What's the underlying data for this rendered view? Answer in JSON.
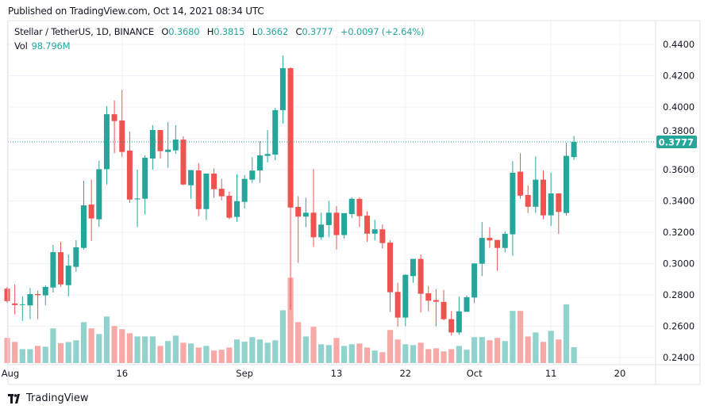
{
  "published": "Published on TradingView.com, Oct 14, 2021 08:34 UTC",
  "legend": {
    "symbol": "Stellar / TetherUS, 1D, BINANCE",
    "open_label": "O",
    "open": "0.3680",
    "high_label": "H",
    "high": "0.3815",
    "low_label": "L",
    "low": "0.3662",
    "close_label": "C",
    "close": "0.3777",
    "change": "+0.0097 (+2.64%)",
    "vol_label": "Vol",
    "vol": "98.796M"
  },
  "footer": {
    "brand": "TradingView"
  },
  "colors": {
    "up": "#26a69a",
    "down": "#ef5350",
    "up_volume": "#92d2cc",
    "down_volume": "#f7a9a7",
    "grid": "#f0f3fa",
    "text": "#131722"
  },
  "chart_data": {
    "type": "candlestick",
    "title": "",
    "ylim": [
      0.24,
      0.44
    ],
    "y_ticks": [
      "0.2400",
      "0.2600",
      "0.2800",
      "0.3000",
      "0.3200",
      "0.3400",
      "0.3600",
      "0.3800",
      "0.4000",
      "0.4200",
      "0.4400"
    ],
    "x_ticks": [
      {
        "label": "Aug",
        "date": "2021-08-01"
      },
      {
        "label": "16",
        "date": "2021-08-16"
      },
      {
        "label": "Sep",
        "date": "2021-09-01"
      },
      {
        "label": "13",
        "date": "2021-09-13"
      },
      {
        "label": "22",
        "date": "2021-09-22"
      },
      {
        "label": "Oct",
        "date": "2021-10-01"
      },
      {
        "label": "11",
        "date": "2021-10-11"
      },
      {
        "label": "20",
        "date": "2021-10-20"
      }
    ],
    "last_price": "0.3777",
    "grid": true,
    "columns": [
      "date",
      "open",
      "high",
      "low",
      "close",
      "volume_M"
    ],
    "rows": [
      [
        "2021-08-01",
        0.284,
        0.285,
        0.275,
        0.276,
        157
      ],
      [
        "2021-08-02",
        0.2745,
        0.2867,
        0.2675,
        0.2735,
        132
      ],
      [
        "2021-08-03",
        0.2735,
        0.2791,
        0.2634,
        0.274,
        87
      ],
      [
        "2021-08-04",
        0.2733,
        0.2844,
        0.2645,
        0.2805,
        87
      ],
      [
        "2021-08-05",
        0.2805,
        0.2827,
        0.2645,
        0.2798,
        107
      ],
      [
        "2021-08-06",
        0.2797,
        0.2861,
        0.2734,
        0.2851,
        102
      ],
      [
        "2021-08-07",
        0.2847,
        0.3119,
        0.2815,
        0.3073,
        216
      ],
      [
        "2021-08-08",
        0.3073,
        0.3139,
        0.2851,
        0.2867,
        124
      ],
      [
        "2021-08-09",
        0.2862,
        0.3058,
        0.279,
        0.2987,
        131
      ],
      [
        "2021-08-10",
        0.2979,
        0.3149,
        0.2948,
        0.3104,
        142
      ],
      [
        "2021-08-11",
        0.31,
        0.3529,
        0.3089,
        0.3372,
        255
      ],
      [
        "2021-08-12",
        0.3377,
        0.3536,
        0.3144,
        0.3288,
        216
      ],
      [
        "2021-08-13",
        0.3283,
        0.3657,
        0.3235,
        0.3603,
        181
      ],
      [
        "2021-08-14",
        0.3603,
        0.4005,
        0.3505,
        0.3954,
        290
      ],
      [
        "2021-08-15",
        0.3954,
        0.4042,
        0.3705,
        0.391,
        231
      ],
      [
        "2021-08-16",
        0.3914,
        0.411,
        0.368,
        0.3713,
        211
      ],
      [
        "2021-08-17",
        0.3722,
        0.3843,
        0.3387,
        0.3409,
        186
      ],
      [
        "2021-08-18",
        0.341,
        0.36,
        0.3232,
        0.3416,
        166
      ],
      [
        "2021-08-19",
        0.3414,
        0.3691,
        0.3313,
        0.3676,
        166
      ],
      [
        "2021-08-20",
        0.3671,
        0.3884,
        0.36,
        0.3853,
        166
      ],
      [
        "2021-08-21",
        0.3853,
        0.3853,
        0.3671,
        0.3718,
        107
      ],
      [
        "2021-08-22",
        0.3713,
        0.3904,
        0.3612,
        0.3728,
        137
      ],
      [
        "2021-08-23",
        0.3723,
        0.3884,
        0.3701,
        0.3792,
        171
      ],
      [
        "2021-08-24",
        0.3792,
        0.3813,
        0.35,
        0.3505,
        127
      ],
      [
        "2021-08-25",
        0.35,
        0.3597,
        0.3414,
        0.3597,
        122
      ],
      [
        "2021-08-26",
        0.3595,
        0.3642,
        0.3303,
        0.3348,
        97
      ],
      [
        "2021-08-27",
        0.3348,
        0.3575,
        0.3278,
        0.3575,
        107
      ],
      [
        "2021-08-28",
        0.3575,
        0.3607,
        0.3421,
        0.3475,
        78
      ],
      [
        "2021-08-29",
        0.3478,
        0.3541,
        0.3404,
        0.343,
        83
      ],
      [
        "2021-08-30",
        0.3433,
        0.346,
        0.3283,
        0.3293,
        97
      ],
      [
        "2021-08-31",
        0.3298,
        0.357,
        0.3267,
        0.3399,
        147
      ],
      [
        "2021-09-01",
        0.3394,
        0.3565,
        0.3353,
        0.3541,
        133
      ],
      [
        "2021-09-02",
        0.3536,
        0.368,
        0.3516,
        0.3594,
        162
      ],
      [
        "2021-09-03",
        0.3595,
        0.3781,
        0.3516,
        0.3691,
        147
      ],
      [
        "2021-09-04",
        0.3688,
        0.3853,
        0.3646,
        0.37,
        127
      ],
      [
        "2021-09-05",
        0.3696,
        0.3995,
        0.366,
        0.398,
        142
      ],
      [
        "2021-09-06",
        0.398,
        0.4329,
        0.3894,
        0.4248,
        329
      ],
      [
        "2021-09-07",
        0.4248,
        0.4253,
        0.2704,
        0.3358,
        532
      ],
      [
        "2021-09-08",
        0.3362,
        0.3431,
        0.3004,
        0.33,
        255
      ],
      [
        "2021-09-09",
        0.33,
        0.3421,
        0.3232,
        0.3325,
        166
      ],
      [
        "2021-09-10",
        0.3325,
        0.3604,
        0.3106,
        0.3168,
        226
      ],
      [
        "2021-09-11",
        0.3168,
        0.3325,
        0.3151,
        0.3249,
        117
      ],
      [
        "2021-09-12",
        0.3246,
        0.3401,
        0.3168,
        0.3325,
        112
      ],
      [
        "2021-09-13",
        0.3325,
        0.3367,
        0.3089,
        0.3182,
        157
      ],
      [
        "2021-09-14",
        0.3182,
        0.3322,
        0.316,
        0.3322,
        107
      ],
      [
        "2021-09-15",
        0.3316,
        0.3424,
        0.3291,
        0.3414,
        117
      ],
      [
        "2021-09-16",
        0.3413,
        0.3424,
        0.3232,
        0.3303,
        122
      ],
      [
        "2021-09-17",
        0.3306,
        0.3334,
        0.3139,
        0.3191,
        97
      ],
      [
        "2021-09-18",
        0.3191,
        0.328,
        0.3148,
        0.3219,
        78
      ],
      [
        "2021-09-19",
        0.3219,
        0.3249,
        0.3097,
        0.3131,
        68
      ],
      [
        "2021-09-20",
        0.3134,
        0.3148,
        0.2692,
        0.2817,
        206
      ],
      [
        "2021-09-21",
        0.2819,
        0.2877,
        0.2596,
        0.2655,
        147
      ],
      [
        "2021-09-22",
        0.2655,
        0.2932,
        0.2601,
        0.2928,
        117
      ],
      [
        "2021-09-23",
        0.292,
        0.303,
        0.2877,
        0.303,
        112
      ],
      [
        "2021-09-24",
        0.303,
        0.3058,
        0.2687,
        0.2807,
        127
      ],
      [
        "2021-09-25",
        0.281,
        0.2856,
        0.2695,
        0.2763,
        87
      ],
      [
        "2021-09-26",
        0.2767,
        0.2836,
        0.2599,
        0.2756,
        92
      ],
      [
        "2021-09-27",
        0.2755,
        0.2832,
        0.2638,
        0.2645,
        73
      ],
      [
        "2021-09-28",
        0.2645,
        0.2697,
        0.254,
        0.256,
        87
      ],
      [
        "2021-09-29",
        0.256,
        0.2789,
        0.2545,
        0.2695,
        107
      ],
      [
        "2021-09-30",
        0.2692,
        0.2796,
        0.2692,
        0.2785,
        83
      ],
      [
        "2021-10-01",
        0.2783,
        0.3003,
        0.2748,
        0.3001,
        162
      ],
      [
        "2021-10-02",
        0.2999,
        0.3266,
        0.292,
        0.3164,
        162
      ],
      [
        "2021-10-03",
        0.3164,
        0.3232,
        0.31,
        0.3148,
        142
      ],
      [
        "2021-10-04",
        0.3151,
        0.3151,
        0.2954,
        0.31,
        157
      ],
      [
        "2021-10-05",
        0.31,
        0.3207,
        0.3072,
        0.319,
        137
      ],
      [
        "2021-10-06",
        0.3187,
        0.3654,
        0.305,
        0.358,
        325
      ],
      [
        "2021-10-07",
        0.3587,
        0.3705,
        0.3414,
        0.3434,
        325
      ],
      [
        "2021-10-08",
        0.3438,
        0.3499,
        0.3323,
        0.3363,
        166
      ],
      [
        "2021-10-09",
        0.3363,
        0.3683,
        0.3323,
        0.3536,
        191
      ],
      [
        "2021-10-10",
        0.3536,
        0.3594,
        0.3283,
        0.3308,
        132
      ],
      [
        "2021-10-11",
        0.3308,
        0.3582,
        0.324,
        0.3448,
        201
      ],
      [
        "2021-10-12",
        0.3448,
        0.345,
        0.319,
        0.333,
        147
      ],
      [
        "2021-10-13",
        0.3323,
        0.3772,
        0.3306,
        0.3688,
        366
      ],
      [
        "2021-10-14",
        0.368,
        0.3815,
        0.3662,
        0.3777,
        98.796
      ]
    ]
  }
}
